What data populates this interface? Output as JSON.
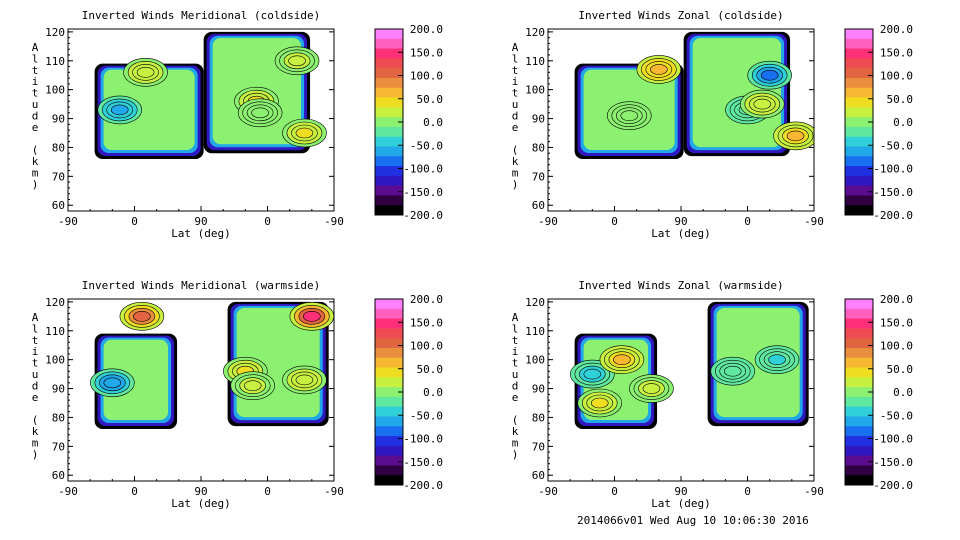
{
  "footer_text": "2014066v01 Wed Aug 10 10:06:30 2016",
  "colorbar": {
    "ticks": [
      "200.0",
      "150.0",
      "100.0",
      "50.0",
      "0.0",
      "-50.0",
      "-100.0",
      "-150.0",
      "-200.0"
    ],
    "colors": [
      "#ff80ff",
      "#ff60c0",
      "#ff2f78",
      "#ee4b52",
      "#e26440",
      "#e88e3c",
      "#f7b732",
      "#eedd20",
      "#c8f040",
      "#8cf070",
      "#60e8a0",
      "#30d0d8",
      "#20a8e8",
      "#1870f0",
      "#2030e0",
      "#3018c0",
      "#5c0c90",
      "#300040",
      "#000000"
    ]
  },
  "chart_data": [
    {
      "type": "heatmap",
      "title": "Inverted Winds Meridional (coldside)",
      "xlabel": "Lat (deg)",
      "ylabel": "Altitude (km)",
      "x_ticks": [
        "-90",
        "0",
        "90",
        "0",
        "-90"
      ],
      "y_ticks": [
        "60",
        "70",
        "80",
        "90",
        "100",
        "110",
        "120"
      ],
      "ylim": [
        58,
        121
      ],
      "zlim": [
        -200,
        200
      ],
      "hotspots": [
        {
          "lat": -20,
          "alt": 93,
          "value": -60
        },
        {
          "lat": 15,
          "alt": 96,
          "value": 40
        },
        {
          "lat": -50,
          "alt": 85,
          "value": 40
        },
        {
          "lat": 10,
          "alt": 92,
          "value": 10
        },
        {
          "lat": 15,
          "alt": 106,
          "value": 30
        },
        {
          "lat": -40,
          "alt": 110,
          "value": 25
        }
      ]
    },
    {
      "type": "heatmap",
      "title": "Inverted Winds Zonal (coldside)",
      "xlabel": "Lat (deg)",
      "ylabel": "Altitude (km)",
      "x_ticks": [
        "-90",
        "0",
        "90",
        "0",
        "-90"
      ],
      "y_ticks": [
        "60",
        "70",
        "80",
        "90",
        "100",
        "110",
        "120"
      ],
      "ylim": [
        58,
        121
      ],
      "zlim": [
        -200,
        200
      ],
      "hotspots": [
        {
          "lat": -65,
          "alt": 84,
          "value": 60
        },
        {
          "lat": 0,
          "alt": 93,
          "value": -30
        },
        {
          "lat": 60,
          "alt": 107,
          "value": 70
        },
        {
          "lat": -30,
          "alt": 105,
          "value": -80
        },
        {
          "lat": 20,
          "alt": 91,
          "value": -10
        },
        {
          "lat": -20,
          "alt": 95,
          "value": 30
        }
      ]
    },
    {
      "type": "heatmap",
      "title": "Inverted Winds Meridional (warmside)",
      "xlabel": "Lat (deg)",
      "ylabel": "Altitude (km)",
      "x_ticks": [
        "-90",
        "0",
        "90",
        "0",
        "-90"
      ],
      "y_ticks": [
        "60",
        "70",
        "80",
        "90",
        "100",
        "110",
        "120"
      ],
      "ylim": [
        58,
        121
      ],
      "zlim": [
        -200,
        200
      ],
      "hotspots": [
        {
          "lat": -50,
          "alt": 93,
          "value": 30
        },
        {
          "lat": 30,
          "alt": 96,
          "value": 40
        },
        {
          "lat": 10,
          "alt": 115,
          "value": 110
        },
        {
          "lat": -60,
          "alt": 115,
          "value": 140
        },
        {
          "lat": -30,
          "alt": 92,
          "value": -70
        },
        {
          "lat": 20,
          "alt": 91,
          "value": 20
        }
      ]
    },
    {
      "type": "heatmap",
      "title": "Inverted Winds Zonal (warmside)",
      "xlabel": "Lat (deg)",
      "ylabel": "Altitude (km)",
      "x_ticks": [
        "-90",
        "0",
        "90",
        "0",
        "-90"
      ],
      "y_ticks": [
        "60",
        "70",
        "80",
        "90",
        "100",
        "110",
        "120"
      ],
      "ylim": [
        58,
        121
      ],
      "zlim": [
        -200,
        200
      ],
      "hotspots": [
        {
          "lat": -30,
          "alt": 95,
          "value": -50
        },
        {
          "lat": 20,
          "alt": 96,
          "value": -30
        },
        {
          "lat": 10,
          "alt": 100,
          "value": 60
        },
        {
          "lat": -40,
          "alt": 100,
          "value": -40
        },
        {
          "lat": -20,
          "alt": 85,
          "value": 40
        },
        {
          "lat": 50,
          "alt": 90,
          "value": 20
        }
      ]
    }
  ]
}
